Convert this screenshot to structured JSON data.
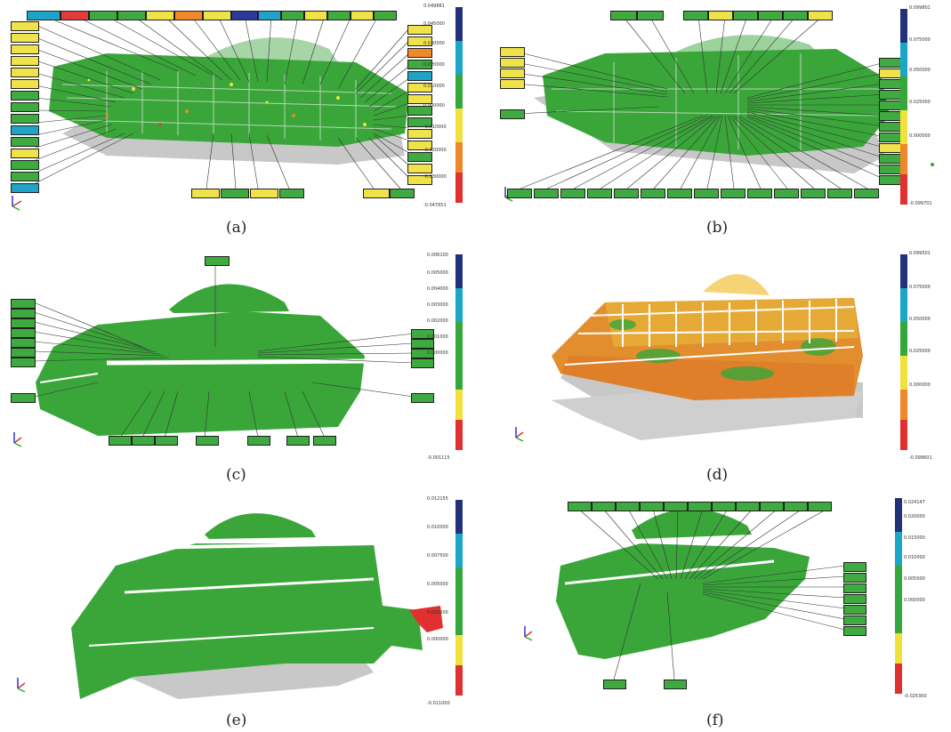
{
  "captions": [
    "(a)",
    "(b)",
    "(c)",
    "(d)",
    "(e)",
    "(f)"
  ],
  "colors": {
    "green": "#3aa63a",
    "gray": "#c8c8c8",
    "yellow": "#f2e23a",
    "orange": "#ef8a2b",
    "red": "#e0302f",
    "cyan": "#19a7c9",
    "blue": "#27307f",
    "scale": [
      "#23307a",
      "#1aa6c6",
      "#35a83b",
      "#f1e23b",
      "#ef872b",
      "#e0302f"
    ]
  },
  "panels": {
    "a": {
      "ticks": [
        "0.049881",
        "0.045000",
        "0.030000",
        "0.020000",
        "0.010000",
        "0.000000",
        "-0.010000",
        "-0.020000",
        "-0.030000",
        "-0.047651"
      ]
    },
    "b": {
      "ticks": [
        "0.099801",
        "0.075000",
        "0.050000",
        "0.025000",
        "0.000000",
        "-0.099701"
      ]
    },
    "c": {
      "ticks": [
        "0.006100",
        "0.005000",
        "0.004000",
        "0.003000",
        "0.002000",
        "0.001000",
        "0.000000",
        "-0.001115"
      ]
    },
    "d": {
      "ticks": [
        "0.099501",
        "0.075000",
        "0.050000",
        "0.025000",
        "0.000000",
        "-0.099601"
      ]
    },
    "e": {
      "ticks": [
        "0.012155",
        "0.010000",
        "0.007500",
        "0.005000",
        "0.002500",
        "0.000000",
        "-0.011000"
      ]
    },
    "f": {
      "ticks": [
        "0.024147",
        "0.020000",
        "0.015000",
        "0.010000",
        "0.005000",
        "0.000000",
        "-0.025300"
      ]
    }
  }
}
